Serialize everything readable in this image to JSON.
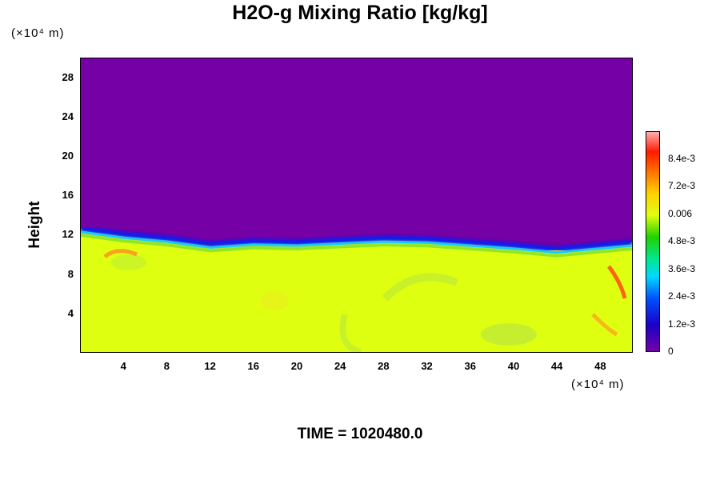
{
  "chart_data": {
    "type": "heatmap",
    "title": "H2O-g Mixing Ratio [kg/kg]",
    "ylabel": "Height",
    "xlabel": "",
    "x_unit": "(×10⁴ m)",
    "y_unit": "(×10⁴ m)",
    "x_ticks": [
      "4",
      "8",
      "12",
      "16",
      "20",
      "24",
      "28",
      "32",
      "36",
      "40",
      "44",
      "48"
    ],
    "y_ticks": [
      "4",
      "8",
      "12",
      "16",
      "20",
      "24",
      "28"
    ],
    "xlim": [
      0,
      51
    ],
    "ylim": [
      0,
      30
    ],
    "colorbar": {
      "ticks": [
        "0",
        "1.2e-3",
        "2.4e-3",
        "3.6e-3",
        "4.8e-3",
        "0.006",
        "7.2e-3",
        "8.4e-3"
      ],
      "range": [
        0,
        0.0096
      ]
    },
    "field": {
      "upper_value": 0,
      "lower_value": 0.0063,
      "transition_height_profile": [
        {
          "x": 0,
          "y": 12.6
        },
        {
          "x": 4,
          "y": 12.0
        },
        {
          "x": 8,
          "y": 11.6
        },
        {
          "x": 12,
          "y": 11.0
        },
        {
          "x": 16,
          "y": 11.3
        },
        {
          "x": 20,
          "y": 11.2
        },
        {
          "x": 24,
          "y": 11.4
        },
        {
          "x": 28,
          "y": 11.6
        },
        {
          "x": 32,
          "y": 11.5
        },
        {
          "x": 36,
          "y": 11.2
        },
        {
          "x": 40,
          "y": 10.9
        },
        {
          "x": 44,
          "y": 10.5
        },
        {
          "x": 48,
          "y": 10.9
        },
        {
          "x": 51,
          "y": 11.2
        }
      ]
    },
    "grid": false
  },
  "footer": {
    "time_label": "TIME = 1020480.0"
  }
}
